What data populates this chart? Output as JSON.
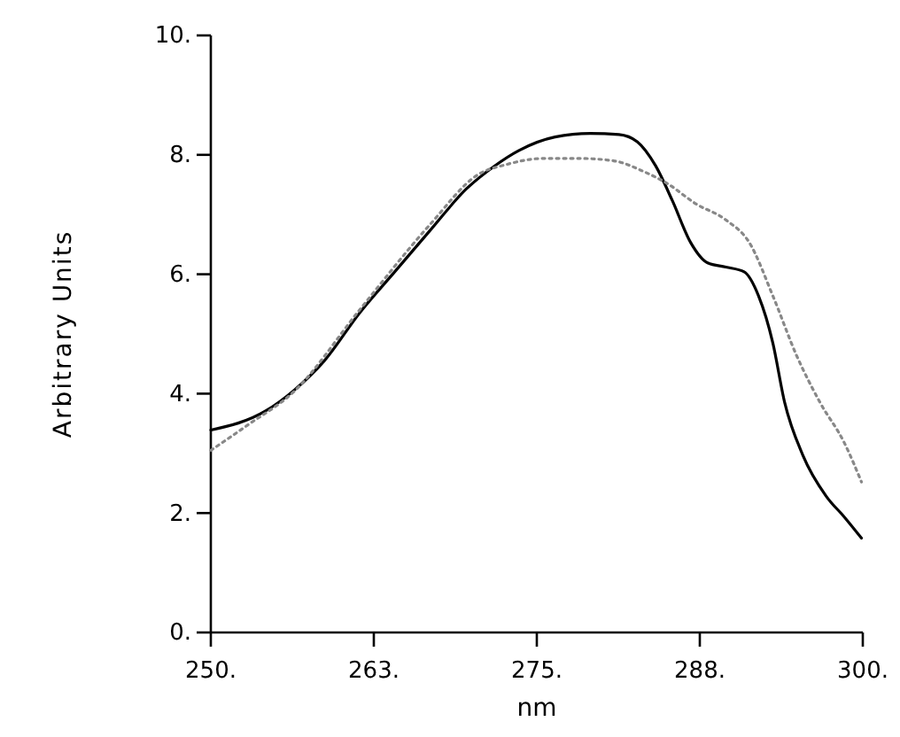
{
  "chart_data": {
    "type": "line",
    "xlabel": "nm",
    "ylabel": "Arbitrary Units",
    "xlim": [
      250,
      300
    ],
    "xticks": [
      {
        "value": 250,
        "label": "250."
      },
      {
        "value": 262.5,
        "label": "263."
      },
      {
        "value": 275,
        "label": "275."
      },
      {
        "value": 287.5,
        "label": "288."
      },
      {
        "value": 300,
        "label": "300."
      }
    ],
    "ylim": [
      0,
      10
    ],
    "yticks": [
      {
        "value": 0,
        "label": "0."
      },
      {
        "value": 2,
        "label": "2."
      },
      {
        "value": 4,
        "label": "4."
      },
      {
        "value": 6,
        "label": "6."
      },
      {
        "value": 8,
        "label": "8."
      },
      {
        "value": 10,
        "label": "10."
      }
    ],
    "marker": "none",
    "series": [
      {
        "color": "#000000",
        "line_style": "solid",
        "x": [
          250,
          254.2,
          256.4,
          258.7,
          261.4,
          264.1,
          266.8,
          269.6,
          271.8,
          273.6,
          276.4,
          279.1,
          281.3,
          282.7,
          284.1,
          285.4,
          286.8,
          288.1,
          289.5,
          290.9,
          292,
          293.1,
          294,
          295.4,
          297.2,
          298.6,
          299.9
        ],
        "values": [
          3.39,
          3.71,
          4.06,
          4.55,
          5.35,
          6.04,
          6.73,
          7.43,
          7.82,
          8.07,
          8.3,
          8.36,
          8.34,
          8.22,
          7.82,
          7.23,
          6.53,
          6.19,
          6.12,
          6.04,
          5.64,
          4.85,
          3.86,
          2.97,
          2.28,
          1.93,
          1.58
        ]
      },
      {
        "color": "#888888",
        "line_style": "dotted",
        "x": [
          250,
          252.8,
          256.4,
          261.4,
          266.8,
          270.5,
          272.7,
          275.5,
          278.2,
          280.9,
          283.2,
          285,
          287.2,
          289.5,
          291.3,
          293.1,
          294.9,
          296.7,
          298.6,
          299.9
        ],
        "values": [
          3.05,
          3.47,
          4.04,
          5.4,
          6.83,
          7.67,
          7.84,
          7.94,
          7.94,
          7.9,
          7.72,
          7.52,
          7.18,
          6.91,
          6.53,
          5.64,
          4.65,
          3.86,
          3.17,
          2.52
        ]
      }
    ]
  }
}
